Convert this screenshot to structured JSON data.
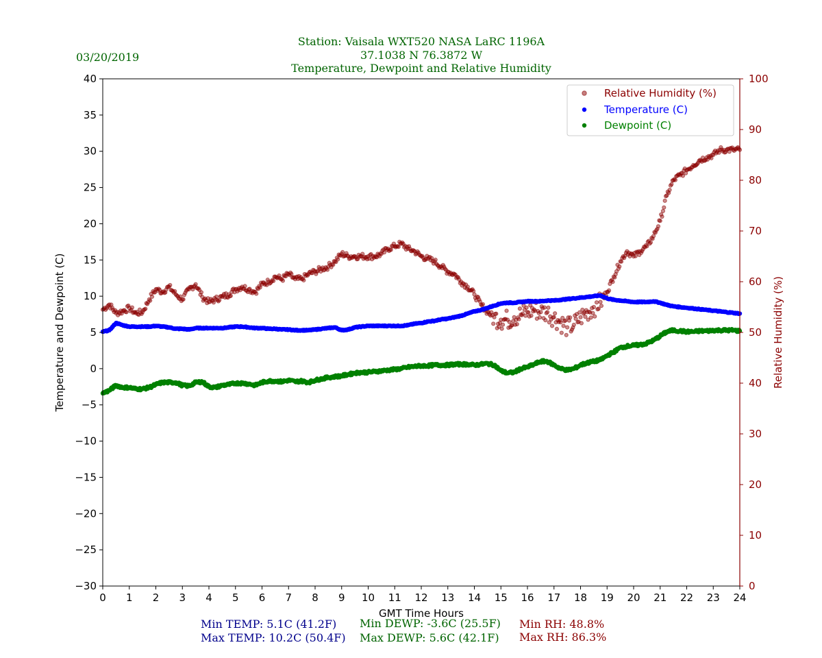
{
  "header": {
    "date": "03/20/2019",
    "title_lines": [
      "Station:  Vaisala WXT520  NASA LaRC 1196A",
      "37.1038 N 76.3872 W",
      "Temperature, Dewpoint and Relative Humidity"
    ]
  },
  "stats": {
    "min_temp": "Min TEMP: 5.1C (41.2F)",
    "max_temp": "Max TEMP: 10.2C (50.4F)",
    "min_dewp": "Min DEWP: -3.6C (25.5F)",
    "max_dewp": "Max DEWP: 5.6C (42.1F)",
    "min_rh": "Min RH: 48.8%",
    "max_rh": "Max RH: 86.3%"
  },
  "colors": {
    "temperature": "#0000ff",
    "dewpoint": "#008000",
    "humidity": "#8b0000",
    "title": "#006400",
    "stats_temp": "#00008b",
    "stats_dewp": "#006400",
    "stats_rh": "#8b0000"
  },
  "chart_data": {
    "type": "scatter",
    "xlabel": "GMT Time Hours",
    "ylabel": "Temperature and Dewpoint (C)",
    "y2label": "Relative Humidity (%)",
    "xlim": [
      0,
      24
    ],
    "ylim": [
      -30,
      40
    ],
    "y2lim": [
      0,
      100
    ],
    "x_ticks": [
      0,
      1,
      2,
      3,
      4,
      5,
      6,
      7,
      8,
      9,
      10,
      11,
      12,
      13,
      14,
      15,
      16,
      17,
      18,
      19,
      20,
      21,
      22,
      23,
      24
    ],
    "y_ticks": [
      40,
      35,
      30,
      25,
      20,
      15,
      10,
      5,
      0,
      -5,
      -10,
      -15,
      -20,
      -25,
      -30
    ],
    "y2_ticks": [
      100,
      90,
      80,
      70,
      60,
      50,
      40,
      30,
      20,
      10,
      0
    ],
    "legend_position": "top-right",
    "grid": false,
    "series": [
      {
        "name": "Relative Humidity (%)",
        "axis": "right",
        "x": [
          0,
          0.25,
          0.5,
          0.75,
          1,
          1.25,
          1.5,
          1.75,
          2,
          2.25,
          2.5,
          2.75,
          3,
          3.25,
          3.5,
          3.75,
          4,
          4.25,
          4.5,
          4.75,
          5,
          5.25,
          5.5,
          5.75,
          6,
          6.25,
          6.5,
          6.75,
          7,
          7.25,
          7.5,
          7.75,
          8,
          8.25,
          8.5,
          8.75,
          9,
          9.25,
          9.5,
          9.75,
          10,
          10.25,
          10.5,
          10.75,
          11,
          11.25,
          11.5,
          11.75,
          12,
          12.25,
          12.5,
          12.75,
          13,
          13.25,
          13.5,
          13.75,
          14,
          14.25,
          14.5,
          14.75,
          15,
          15.25,
          15.5,
          15.75,
          16,
          16.25,
          16.5,
          16.75,
          17,
          17.25,
          17.5,
          17.75,
          18,
          18.25,
          18.5,
          18.75,
          19,
          19.25,
          19.5,
          19.75,
          20,
          20.25,
          20.5,
          20.75,
          21,
          21.25,
          21.5,
          21.75,
          22,
          22.25,
          22.5,
          22.75,
          23,
          23.25,
          23.5,
          23.75,
          24
        ],
        "values": [
          54.5,
          55.5,
          53.8,
          54.2,
          54.8,
          53.8,
          54,
          56.5,
          58.5,
          58,
          59,
          57.5,
          56.5,
          58.5,
          59.5,
          57,
          56,
          56.5,
          57,
          57.5,
          58.5,
          59,
          58.5,
          58,
          59.5,
          60,
          61,
          60.5,
          61.5,
          60.5,
          60.5,
          61.5,
          62,
          62.5,
          63,
          64,
          65.5,
          65,
          65,
          65,
          65,
          65,
          65.5,
          66.5,
          67,
          67.5,
          66.5,
          66,
          65,
          64.5,
          64,
          63,
          62,
          61.5,
          60,
          59,
          57.5,
          55.5,
          54,
          53,
          52.5,
          52.5,
          53,
          53.5,
          54,
          54.5,
          54,
          54,
          53,
          52,
          51,
          51.5,
          53,
          54,
          55,
          56,
          58,
          61,
          64,
          66,
          65,
          66,
          67,
          69,
          72,
          77,
          80,
          81,
          82,
          83,
          84,
          84.5,
          85,
          86,
          86,
          86,
          86
        ]
      },
      {
        "name": "Temperature (C)",
        "axis": "left",
        "x": [
          0,
          0.25,
          0.5,
          0.75,
          1,
          1.25,
          1.5,
          1.75,
          2,
          2.25,
          2.5,
          2.75,
          3,
          3.25,
          3.5,
          3.75,
          4,
          4.25,
          4.5,
          4.75,
          5,
          5.25,
          5.5,
          5.75,
          6,
          6.25,
          6.5,
          6.75,
          7,
          7.25,
          7.5,
          7.75,
          8,
          8.25,
          8.5,
          8.75,
          9,
          9.25,
          9.5,
          9.75,
          10,
          10.25,
          10.5,
          10.75,
          11,
          11.25,
          11.5,
          11.75,
          12,
          12.25,
          12.5,
          12.75,
          13,
          13.25,
          13.5,
          13.75,
          14,
          14.25,
          14.5,
          14.75,
          15,
          15.25,
          15.5,
          15.75,
          16,
          16.25,
          16.5,
          16.75,
          17,
          17.25,
          17.5,
          17.75,
          18,
          18.25,
          18.5,
          18.75,
          19,
          19.25,
          19.5,
          19.75,
          20,
          20.25,
          20.5,
          20.75,
          21,
          21.25,
          21.5,
          21.75,
          22,
          22.25,
          22.5,
          22.75,
          23,
          23.25,
          23.5,
          23.75,
          24
        ],
        "values": [
          5.1,
          5.3,
          6.3,
          6,
          5.8,
          5.8,
          5.8,
          5.8,
          5.9,
          5.8,
          5.7,
          5.5,
          5.5,
          5.4,
          5.6,
          5.6,
          5.6,
          5.6,
          5.6,
          5.7,
          5.8,
          5.8,
          5.7,
          5.6,
          5.6,
          5.5,
          5.5,
          5.4,
          5.4,
          5.3,
          5.3,
          5.3,
          5.4,
          5.5,
          5.6,
          5.7,
          5.3,
          5.4,
          5.7,
          5.8,
          5.9,
          5.9,
          5.9,
          5.9,
          5.9,
          5.9,
          6,
          6.2,
          6.3,
          6.5,
          6.6,
          6.8,
          6.9,
          7.1,
          7.3,
          7.6,
          7.9,
          8.1,
          8.4,
          8.7,
          9,
          9.1,
          9.1,
          9.2,
          9.3,
          9.3,
          9.3,
          9.4,
          9.4,
          9.5,
          9.6,
          9.7,
          9.8,
          9.9,
          10,
          10.1,
          9.7,
          9.5,
          9.4,
          9.3,
          9.2,
          9.2,
          9.2,
          9.3,
          9.1,
          8.8,
          8.6,
          8.5,
          8.4,
          8.3,
          8.2,
          8.1,
          8,
          7.9,
          7.8,
          7.7,
          7.6
        ]
      },
      {
        "name": "Dewpoint (C)",
        "axis": "left",
        "x": [
          0,
          0.25,
          0.5,
          0.75,
          1,
          1.25,
          1.5,
          1.75,
          2,
          2.25,
          2.5,
          2.75,
          3,
          3.25,
          3.5,
          3.75,
          4,
          4.25,
          4.5,
          4.75,
          5,
          5.25,
          5.5,
          5.75,
          6,
          6.25,
          6.5,
          6.75,
          7,
          7.25,
          7.5,
          7.75,
          8,
          8.25,
          8.5,
          8.75,
          9,
          9.25,
          9.5,
          9.75,
          10,
          10.25,
          10.5,
          10.75,
          11,
          11.25,
          11.5,
          11.75,
          12,
          12.25,
          12.5,
          12.75,
          13,
          13.25,
          13.5,
          13.75,
          14,
          14.25,
          14.5,
          14.75,
          15,
          15.25,
          15.5,
          15.75,
          16,
          16.25,
          16.5,
          16.75,
          17,
          17.25,
          17.5,
          17.75,
          18,
          18.25,
          18.5,
          18.75,
          19,
          19.25,
          19.5,
          19.75,
          20,
          20.25,
          20.5,
          20.75,
          21,
          21.25,
          21.5,
          21.75,
          22,
          22.25,
          22.5,
          22.75,
          23,
          23.25,
          23.5,
          23.75,
          24
        ],
        "values": [
          -3.4,
          -3,
          -2.3,
          -2.6,
          -2.6,
          -2.8,
          -2.8,
          -2.6,
          -2.2,
          -1.9,
          -1.9,
          -1.9,
          -2.3,
          -2.4,
          -1.9,
          -1.8,
          -2.5,
          -2.6,
          -2.3,
          -2.2,
          -2,
          -2,
          -2.1,
          -2.3,
          -1.9,
          -1.7,
          -1.7,
          -1.8,
          -1.6,
          -1.8,
          -1.7,
          -1.9,
          -1.6,
          -1.4,
          -1.2,
          -1.1,
          -1,
          -0.8,
          -0.6,
          -0.5,
          -0.5,
          -0.4,
          -0.3,
          -0.2,
          -0.1,
          0,
          0.2,
          0.3,
          0.4,
          0.4,
          0.5,
          0.5,
          0.5,
          0.6,
          0.6,
          0.6,
          0.5,
          0.6,
          0.7,
          0.5,
          -0.3,
          -0.6,
          -0.5,
          0,
          0.2,
          0.6,
          1,
          1,
          0.5,
          0,
          -0.2,
          0,
          0.5,
          0.8,
          1,
          1.2,
          1.8,
          2.3,
          2.9,
          3.1,
          3.2,
          3.3,
          3.5,
          3.9,
          4.5,
          5.1,
          5.3,
          5.2,
          5.1,
          5.1,
          5.2,
          5.2,
          5.3,
          5.3,
          5.3,
          5.3,
          5.2
        ]
      }
    ]
  }
}
